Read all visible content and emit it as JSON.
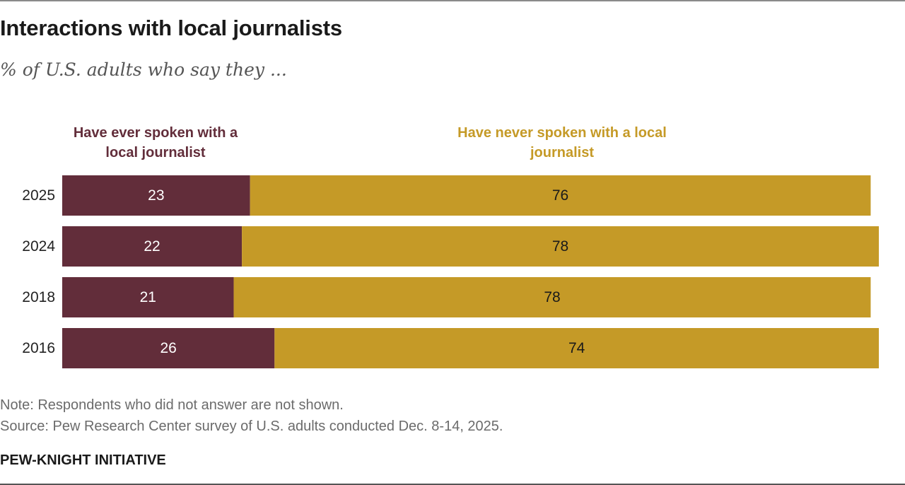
{
  "title": "Interactions with local journalists",
  "subtitle": "% of U.S. adults who say they ...",
  "note": "Note: Respondents who did not answer are not shown.",
  "source": "Source: Pew Research Center survey of U.S. adults conducted Dec. 8-14, 2025.",
  "branding": "PEW-KNIGHT INITIATIVE",
  "colors": {
    "series_0": "#622d3a",
    "series_1": "#c59a27",
    "label_on_series_0": "#ffffff",
    "label_on_series_1": "#1a1a1a"
  },
  "chart_data": {
    "type": "bar",
    "orientation": "horizontal",
    "stacked": true,
    "categories": [
      "2025",
      "2024",
      "2018",
      "2016"
    ],
    "series": [
      {
        "name": "Have ever spoken with a local journalist",
        "values": [
          23,
          22,
          21,
          26
        ]
      },
      {
        "name": "Have never spoken with a local journalist",
        "values": [
          76,
          78,
          78,
          74
        ]
      }
    ],
    "xlim": [
      0,
      100
    ],
    "grid": false,
    "legend": "top"
  }
}
